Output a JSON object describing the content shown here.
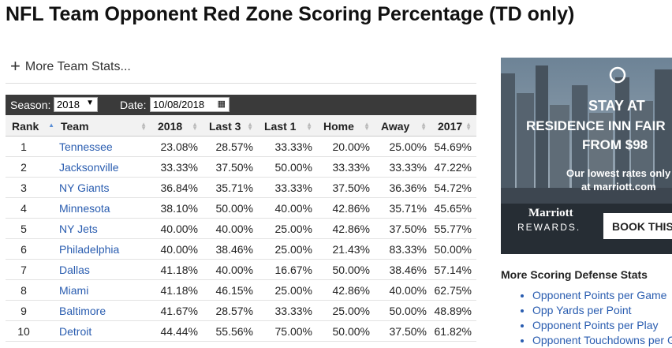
{
  "header": {
    "title": "NFL Team Opponent Red Zone Scoring Percentage (TD only)",
    "more_link": "More Team Stats..."
  },
  "filters": {
    "season_label": "Season:",
    "season_value": "2018",
    "date_label": "Date:",
    "date_value": "10/08/2018"
  },
  "table": {
    "columns": [
      "Rank",
      "Team",
      "2018",
      "Last 3",
      "Last 1",
      "Home",
      "Away",
      "2017"
    ],
    "rows": [
      [
        "1",
        "Tennessee",
        "23.08%",
        "28.57%",
        "33.33%",
        "20.00%",
        "25.00%",
        "54.69%"
      ],
      [
        "2",
        "Jacksonville",
        "33.33%",
        "37.50%",
        "50.00%",
        "33.33%",
        "33.33%",
        "47.22%"
      ],
      [
        "3",
        "NY Giants",
        "36.84%",
        "35.71%",
        "33.33%",
        "37.50%",
        "36.36%",
        "54.72%"
      ],
      [
        "4",
        "Minnesota",
        "38.10%",
        "50.00%",
        "40.00%",
        "42.86%",
        "35.71%",
        "45.65%"
      ],
      [
        "5",
        "NY Jets",
        "40.00%",
        "40.00%",
        "25.00%",
        "42.86%",
        "37.50%",
        "55.77%"
      ],
      [
        "6",
        "Philadelphia",
        "40.00%",
        "38.46%",
        "25.00%",
        "21.43%",
        "83.33%",
        "50.00%"
      ],
      [
        "7",
        "Dallas",
        "41.18%",
        "40.00%",
        "16.67%",
        "50.00%",
        "38.46%",
        "57.14%"
      ],
      [
        "8",
        "Miami",
        "41.18%",
        "46.15%",
        "25.00%",
        "42.86%",
        "40.00%",
        "62.75%"
      ],
      [
        "9",
        "Baltimore",
        "41.67%",
        "28.57%",
        "33.33%",
        "25.00%",
        "50.00%",
        "48.89%"
      ],
      [
        "10",
        "Detroit",
        "44.44%",
        "55.56%",
        "75.00%",
        "50.00%",
        "37.50%",
        "61.82%"
      ]
    ]
  },
  "ad": {
    "line1": "STAY AT",
    "line2": "RESIDENCE INN FAIR",
    "line3": "FROM $98",
    "line4": "Our lowest rates only",
    "line5": "at marriott.com",
    "brand": "Marriott",
    "brand2": "REWARDS.",
    "cta": "BOOK THIS"
  },
  "sidebar": {
    "heading": "More Scoring Defense Stats",
    "links": [
      "Opponent Points per Game",
      "Opp Yards per Point",
      "Opponent Points per Play",
      "Opponent Touchdowns per Game"
    ]
  }
}
